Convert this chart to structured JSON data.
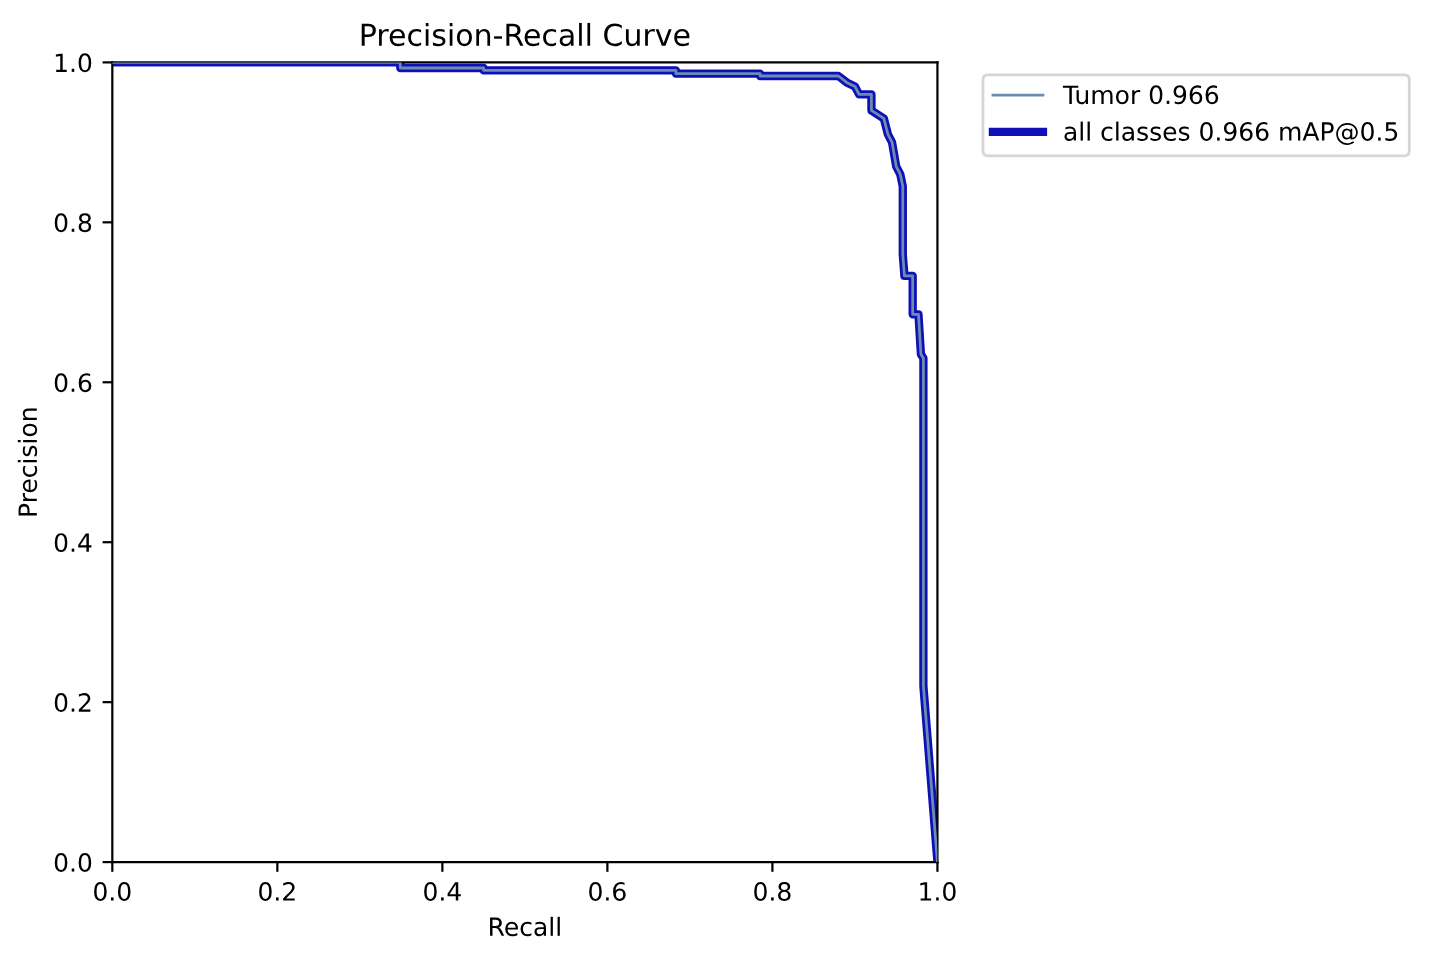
{
  "chart_data": {
    "type": "line",
    "title": "Precision-Recall Curve",
    "xlabel": "Recall",
    "ylabel": "Precision",
    "xlim": [
      0,
      1
    ],
    "ylim": [
      0,
      1
    ],
    "xticks": [
      {
        "value": 0,
        "label": "0.0"
      },
      {
        "value": 0.2,
        "label": "0.2"
      },
      {
        "value": 0.4,
        "label": "0.4"
      },
      {
        "value": 0.6,
        "label": "0.6"
      },
      {
        "value": 0.8,
        "label": "0.8"
      },
      {
        "value": 1,
        "label": "1.0"
      }
    ],
    "yticks": [
      {
        "value": 0,
        "label": "0.0"
      },
      {
        "value": 0.2,
        "label": "0.2"
      },
      {
        "value": 0.4,
        "label": "0.4"
      },
      {
        "value": 0.6,
        "label": "0.6"
      },
      {
        "value": 0.8,
        "label": "0.8"
      },
      {
        "value": 1,
        "label": "1.0"
      }
    ],
    "legend": "top right",
    "grid": false,
    "marker": "none",
    "line_style": "solid",
    "x": [
      0,
      0.349,
      0.349,
      0.45,
      0.45,
      0.683,
      0.683,
      0.785,
      0.785,
      0.88,
      0.89,
      0.9,
      0.905,
      0.92,
      0.92,
      0.935,
      0.94,
      0.945,
      0.95,
      0.955,
      0.958,
      0.958,
      0.96,
      0.97,
      0.97,
      0.977,
      0.98,
      0.983,
      0.983,
      1.0
    ],
    "series": [
      {
        "name": "all classes 0.966 mAP@0.5",
        "color": "#1010b8",
        "values": [
          1.0,
          1.0,
          0.993,
          0.993,
          0.99,
          0.99,
          0.986,
          0.986,
          0.983,
          0.983,
          0.975,
          0.97,
          0.96,
          0.96,
          0.94,
          0.93,
          0.91,
          0.9,
          0.87,
          0.86,
          0.845,
          0.76,
          0.733,
          0.733,
          0.685,
          0.685,
          0.635,
          0.63,
          0.22,
          0.0
        ]
      },
      {
        "name": "Tumor 0.966",
        "color": "#6a8db0",
        "values": [
          1.0,
          1.0,
          0.993,
          0.993,
          0.99,
          0.99,
          0.986,
          0.986,
          0.983,
          0.983,
          0.975,
          0.97,
          0.96,
          0.96,
          0.94,
          0.93,
          0.91,
          0.9,
          0.87,
          0.86,
          0.845,
          0.76,
          0.733,
          0.733,
          0.685,
          0.685,
          0.635,
          0.63,
          0.22,
          0.0
        ]
      }
    ]
  }
}
